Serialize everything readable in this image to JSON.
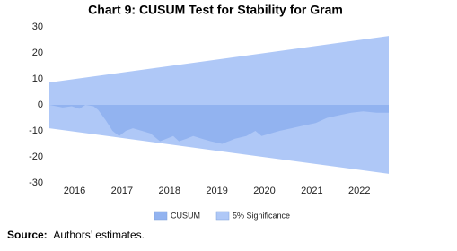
{
  "chart_data": {
    "type": "area",
    "title": "Chart 9: CUSUM Test for Stability for Gram",
    "source_label": "Source:",
    "source_text": "Authors’ estimates.",
    "xlim": [
      2015.47,
      2022.62
    ],
    "xticks": [
      2016,
      2017,
      2018,
      2019,
      2020,
      2021,
      2022
    ],
    "ylim": [
      -30,
      30
    ],
    "yticks": [
      -30,
      -20,
      -10,
      0,
      10,
      20,
      30
    ],
    "legend": "bottom",
    "series": [
      {
        "name": "CUSUM",
        "color": "#92b3f0",
        "x": [
          2015.47,
          2015.75,
          2015.94,
          2016.1,
          2016.23,
          2016.4,
          2016.5,
          2016.66,
          2016.8,
          2016.94,
          2017.08,
          2017.23,
          2017.42,
          2017.6,
          2017.8,
          2017.94,
          2018.08,
          2018.2,
          2018.36,
          2018.5,
          2018.68,
          2018.87,
          2019.11,
          2019.38,
          2019.62,
          2019.81,
          2019.94,
          2020.13,
          2020.32,
          2020.57,
          2020.81,
          2021.08,
          2021.32,
          2021.57,
          2021.83,
          2022.08,
          2022.36,
          2022.62
        ],
        "values": [
          0,
          -1,
          -0.5,
          -1.5,
          0,
          -0.5,
          -2,
          -6,
          -10,
          -12,
          -10,
          -9,
          -10,
          -11,
          -14,
          -13,
          -12,
          -14,
          -13,
          -12,
          -13,
          -14,
          -15,
          -13,
          -12,
          -10,
          -12,
          -11,
          -10,
          -9,
          -8,
          -7,
          -5,
          -4,
          -3,
          -2.5,
          -3,
          -3
        ]
      },
      {
        "name": "5% Significance",
        "color": "#afc8f7",
        "x": [
          2015.47,
          2022.62
        ],
        "values": [
          8.6,
          26.5
        ],
        "lower": [
          -9,
          -26.5
        ]
      }
    ]
  }
}
